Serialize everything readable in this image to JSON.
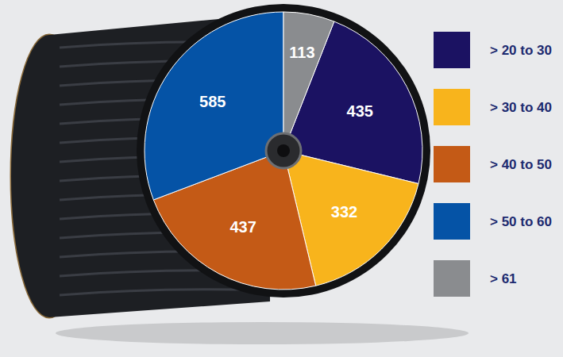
{
  "chart_data": {
    "type": "pie",
    "categories": [
      "> 20 to 30",
      "> 30 to 40",
      "> 40 to 50",
      "> 50 to 60",
      "> 61"
    ],
    "values": [
      435,
      332,
      437,
      585,
      113
    ],
    "colors": [
      "#1b1262",
      "#f8b41c",
      "#c45a16",
      "#0553a6",
      "#8a8c8f"
    ],
    "data_labels": true,
    "legend": "right"
  }
}
